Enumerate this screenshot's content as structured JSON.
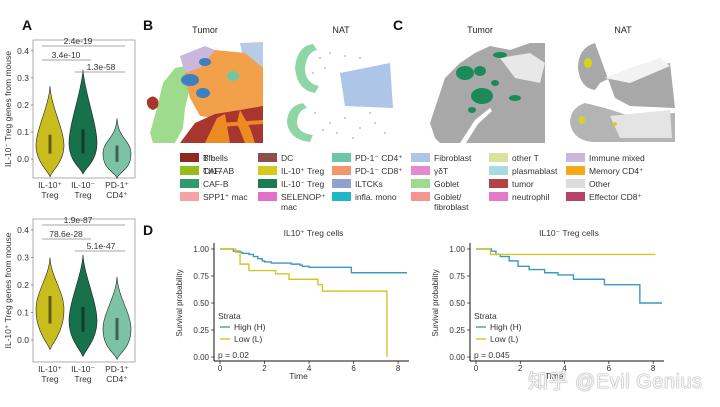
{
  "panels": {
    "A": {
      "label": "A"
    },
    "B": {
      "label": "B",
      "maps": [
        {
          "title": "Tumor"
        },
        {
          "title": "NAT"
        }
      ]
    },
    "C": {
      "label": "C",
      "maps": [
        {
          "title": "Tumor"
        },
        {
          "title": "NAT"
        }
      ]
    },
    "D": {
      "label": "D"
    }
  },
  "legend": {
    "items": [
      {
        "label": "B cells",
        "color": "#2a6db5"
      },
      {
        "label": "CAF-AB",
        "color": "#f07f1e"
      },
      {
        "label": "CAF-B",
        "color": "#2e9a6e"
      },
      {
        "label": "SPP1⁺ mac",
        "color": "#f4a3a3"
      },
      {
        "label": "DC",
        "color": "#8f4e4a"
      },
      {
        "label": "IL-10⁺ Treg",
        "color": "#d8c81c"
      },
      {
        "label": "IL-10⁻ Treg",
        "color": "#1b7c52"
      },
      {
        "label": "SELENOP⁺ mac",
        "color": "#e070c8"
      },
      {
        "label": "PD-1⁻ CD4⁺",
        "color": "#6fc6a6"
      },
      {
        "label": "PD-1⁻ CD8⁺",
        "color": "#f4966b"
      },
      {
        "label": "ILTCKs",
        "color": "#8ea1cf"
      },
      {
        "label": "infla. mono",
        "color": "#20b5c8"
      },
      {
        "label": "Fibroblast",
        "color": "#adc6e8"
      },
      {
        "label": "γδT",
        "color": "#e58ad0"
      },
      {
        "label": "Goblet",
        "color": "#9fdb8c"
      },
      {
        "label": "Goblet/ fibroblast",
        "color": "#f49590"
      },
      {
        "label": "other T",
        "color": "#dbe39a"
      },
      {
        "label": "plasmablast",
        "color": "#a6dbe4"
      },
      {
        "label": "tumor",
        "color": "#b34343"
      },
      {
        "label": "neutrophil",
        "color": "#e37ac7"
      },
      {
        "label": "Immune mixed",
        "color": "#c9b7dc"
      },
      {
        "label": "Memory CD4⁺",
        "color": "#f5a81a"
      },
      {
        "label": "Other",
        "color": "#dcdcdc"
      },
      {
        "label": "Effector CD8⁺",
        "color": "#b5426a"
      },
      {
        "label": "Tfh",
        "color": "#8e2a1a"
      },
      {
        "label": "Th17",
        "color": "#95bb1c"
      }
    ]
  },
  "chart_data": [
    {
      "type": "violin",
      "panel": "A-top",
      "ylabel": "IL-10⁻ Treg genes from mouse",
      "ylim": [
        -0.07,
        0.44
      ],
      "yticks": [
        0.0,
        0.1,
        0.2,
        0.3,
        0.4
      ],
      "ytick_labels": [
        "0.0",
        "0.1",
        "0.2",
        "0.3",
        "0.4"
      ],
      "categories": [
        "IL-10⁺ Treg",
        "IL-10⁻ Treg",
        "PD-1⁺ CD4⁺"
      ],
      "colors": [
        "#c9bc1d",
        "#17714a",
        "#7cc3a6"
      ],
      "distributions": [
        {
          "min": -0.065,
          "max": 0.27,
          "median": 0.05,
          "q1": 0.02,
          "q3": 0.09
        },
        {
          "min": -0.055,
          "max": 0.33,
          "median": 0.06,
          "q1": 0.02,
          "q3": 0.11
        },
        {
          "min": -0.07,
          "max": 0.15,
          "median": 0.02,
          "q1": -0.01,
          "q3": 0.05
        }
      ],
      "comparisons": [
        {
          "from": 0,
          "to": 2,
          "p": "2.4e-19"
        },
        {
          "from": 0,
          "to": 1,
          "p": "3.4e-10"
        },
        {
          "from": 1,
          "to": 2,
          "p": "1.3e-58"
        }
      ]
    },
    {
      "type": "violin",
      "panel": "A-bottom",
      "ylabel": "IL-10⁺ Treg genes from mouse",
      "ylim": [
        -0.08,
        0.44
      ],
      "yticks": [
        0.0,
        0.1,
        0.2,
        0.3,
        0.4
      ],
      "ytick_labels": [
        "0.0",
        "0.1",
        "0.2",
        "0.3",
        "0.4"
      ],
      "categories": [
        "IL-10⁺ Treg",
        "IL-10⁻ Treg",
        "PD-1⁺ CD4⁺"
      ],
      "colors": [
        "#c9bc1d",
        "#17714a",
        "#7cc3a6"
      ],
      "distributions": [
        {
          "min": -0.035,
          "max": 0.3,
          "median": 0.11,
          "q1": 0.06,
          "q3": 0.16
        },
        {
          "min": -0.06,
          "max": 0.31,
          "median": 0.07,
          "q1": 0.03,
          "q3": 0.12
        },
        {
          "min": -0.07,
          "max": 0.23,
          "median": 0.04,
          "q1": 0.0,
          "q3": 0.08
        }
      ],
      "comparisons": [
        {
          "from": 0,
          "to": 2,
          "p": "1.9e-87"
        },
        {
          "from": 0,
          "to": 1,
          "p": "78.6e-28"
        },
        {
          "from": 1,
          "to": 2,
          "p": "5.1e-47"
        }
      ]
    },
    {
      "type": "line",
      "subtype": "kaplan-meier",
      "title": "IL10⁺ Treg cells",
      "xlabel": "Time",
      "ylabel": "Survival probability",
      "xlim": [
        0,
        8.4
      ],
      "ylim": [
        0,
        1.0
      ],
      "xticks": [
        0,
        2,
        4,
        6,
        8
      ],
      "yticks": [
        0.0,
        0.25,
        0.5,
        0.75,
        1.0
      ],
      "ytick_labels": [
        "0.00",
        "0.25",
        "0.50",
        "0.75",
        "1.00"
      ],
      "legend_title": "Strata",
      "legend_position": "bottom-left",
      "pvalue": "p = 0.02",
      "series": [
        {
          "name": "High (H)",
          "color": "#3d98c4",
          "x": [
            0,
            0.6,
            0.9,
            1.0,
            1.3,
            1.5,
            1.7,
            1.9,
            2.0,
            2.3,
            3.2,
            3.6,
            3.7,
            4.0,
            5.9,
            8.4
          ],
          "y": [
            1.0,
            0.98,
            0.97,
            0.96,
            0.95,
            0.93,
            0.91,
            0.89,
            0.88,
            0.87,
            0.86,
            0.85,
            0.84,
            0.83,
            0.78,
            0.78
          ]
        },
        {
          "name": "Low (L)",
          "color": "#d7c428",
          "x": [
            0,
            0.7,
            0.9,
            1.3,
            2.5,
            3.1,
            4.4,
            4.6,
            7.5,
            7.5
          ],
          "y": [
            1.0,
            0.97,
            0.86,
            0.8,
            0.77,
            0.72,
            0.67,
            0.61,
            0.61,
            0.0
          ]
        }
      ]
    },
    {
      "type": "line",
      "subtype": "kaplan-meier",
      "title": "IL10⁻ Treg cells",
      "xlabel": "Time",
      "ylabel": "Survival probability",
      "xlim": [
        0,
        8.4
      ],
      "ylim": [
        0,
        1.0
      ],
      "xticks": [
        0,
        2,
        4,
        6,
        8
      ],
      "yticks": [
        0.0,
        0.25,
        0.5,
        0.75,
        1.0
      ],
      "ytick_labels": [
        "0.00",
        "0.25",
        "0.50",
        "0.75",
        "1.00"
      ],
      "legend_title": "Strata",
      "legend_position": "bottom-left",
      "pvalue": "p = 0.045",
      "series": [
        {
          "name": "High (H)",
          "color": "#3d98c4",
          "x": [
            0,
            0.7,
            0.9,
            1.1,
            1.5,
            1.9,
            2.4,
            3.1,
            3.7,
            4.4,
            5.8,
            7.4,
            8.4
          ],
          "y": [
            1.0,
            0.98,
            0.95,
            0.93,
            0.89,
            0.84,
            0.81,
            0.78,
            0.76,
            0.72,
            0.67,
            0.5,
            0.5
          ]
        },
        {
          "name": "Low (L)",
          "color": "#d7c428",
          "x": [
            0,
            0.65,
            8.1
          ],
          "y": [
            1.0,
            0.95,
            0.95
          ]
        }
      ]
    }
  ],
  "watermark": "知乎 @Evil Genius"
}
